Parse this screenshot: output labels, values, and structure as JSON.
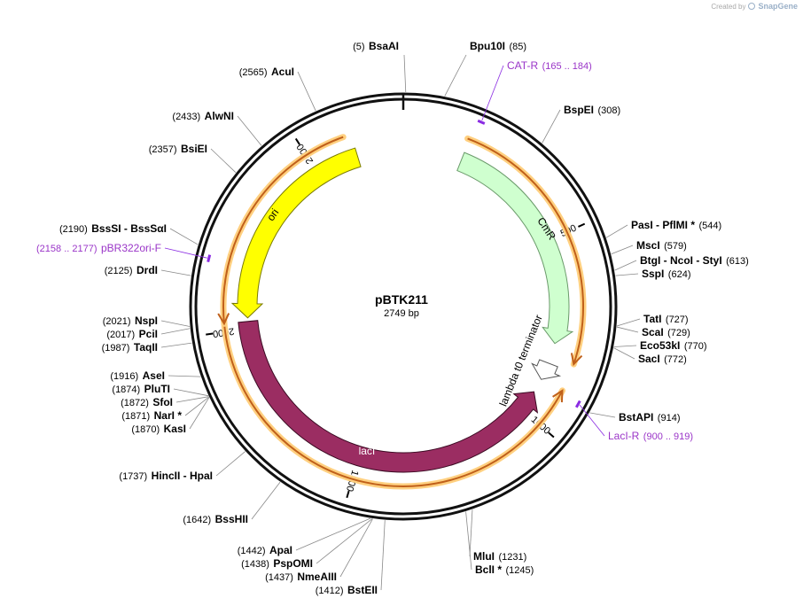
{
  "credit": {
    "prefix": "Created by",
    "brand": "SnapGene"
  },
  "plasmid": {
    "name": "pBTK211",
    "length_label": "2749 bp",
    "total_bp": 2749
  },
  "colors": {
    "cmr": "#cfffcf",
    "ori": "#ffff00",
    "laci": "#9b2d62",
    "terminator": "#ffffff",
    "primer": "#8a2be2",
    "orf": "#c0601a",
    "orf_glow": "#ffd080"
  },
  "ticks": [
    "500",
    "1000",
    "1500",
    "2000",
    "2500"
  ],
  "features": [
    {
      "name": "CmR",
      "start": 165,
      "end": 792,
      "direction": "forward"
    },
    {
      "name": "lambda t0 terminator",
      "start": 850,
      "end": 900,
      "direction": "forward"
    },
    {
      "name": "lacI",
      "start": 940,
      "end": 2020,
      "direction": "reverse"
    },
    {
      "name": "ori",
      "start": 2030,
      "end": 2620,
      "direction": "reverse"
    }
  ],
  "primers": [
    {
      "name": "CAT-R",
      "range": "(165 .. 184)",
      "position": 175
    },
    {
      "name": "LacI-R",
      "range": "(900 .. 919)",
      "position": 910
    },
    {
      "name": "pBR322ori-F",
      "range": "(2158 .. 2177)",
      "position": 2168
    }
  ],
  "enzyme_labels": [
    {
      "parts": [
        "Bpu10I"
      ],
      "position": "(85)",
      "bp": 85
    },
    {
      "parts": [
        "BspEI"
      ],
      "position": "(308)",
      "bp": 308
    },
    {
      "parts": [
        "PasI",
        "PflMI *"
      ],
      "position": "(544)",
      "bp": 544
    },
    {
      "parts": [
        "MscI"
      ],
      "position": "(579)",
      "bp": 579
    },
    {
      "parts": [
        "BtgI",
        "NcoI",
        "StyI"
      ],
      "position": "(613)",
      "bp": 613
    },
    {
      "parts": [
        "SspI"
      ],
      "position": "(624)",
      "bp": 624
    },
    {
      "parts": [
        "TatI"
      ],
      "position": "(727)",
      "bp": 727
    },
    {
      "parts": [
        "ScaI"
      ],
      "position": "(729)",
      "bp": 729
    },
    {
      "parts": [
        "Eco53kI"
      ],
      "position": "(770)",
      "bp": 770
    },
    {
      "parts": [
        "SacI"
      ],
      "position": "(772)",
      "bp": 772
    },
    {
      "parts": [
        "BstAPI"
      ],
      "position": "(914)",
      "bp": 914
    },
    {
      "parts": [
        "MluI"
      ],
      "position": "(1231)",
      "bp": 1231
    },
    {
      "parts": [
        "BclI *"
      ],
      "position": "(1245)",
      "bp": 1245
    },
    {
      "parts": [
        "BstEII"
      ],
      "position": "(1412)",
      "bp": 1412
    },
    {
      "parts": [
        "NmeAIII"
      ],
      "position": "(1437)",
      "bp": 1437
    },
    {
      "parts": [
        "PspOMI"
      ],
      "position": "(1438)",
      "bp": 1438
    },
    {
      "parts": [
        "ApaI"
      ],
      "position": "(1442)",
      "bp": 1442
    },
    {
      "parts": [
        "BssHII"
      ],
      "position": "(1642)",
      "bp": 1642
    },
    {
      "parts": [
        "HincII",
        "HpaI"
      ],
      "position": "(1737)",
      "bp": 1737
    },
    {
      "parts": [
        "KasI"
      ],
      "position": "(1870)",
      "bp": 1870
    },
    {
      "parts": [
        "NarI *"
      ],
      "position": "(1871)",
      "bp": 1871
    },
    {
      "parts": [
        "SfoI"
      ],
      "position": "(1872)",
      "bp": 1872
    },
    {
      "parts": [
        "PluTI"
      ],
      "position": "(1874)",
      "bp": 1874
    },
    {
      "parts": [
        "AseI"
      ],
      "position": "(1916)",
      "bp": 1916
    },
    {
      "parts": [
        "TaqII"
      ],
      "position": "(1987)",
      "bp": 1987
    },
    {
      "parts": [
        "PciI"
      ],
      "position": "(2017)",
      "bp": 2017
    },
    {
      "parts": [
        "NspI"
      ],
      "position": "(2021)",
      "bp": 2021
    },
    {
      "parts": [
        "DrdI"
      ],
      "position": "(2125)",
      "bp": 2125
    },
    {
      "parts": [
        "BssSI",
        "BssSαI"
      ],
      "position": "(2190)",
      "bp": 2190
    },
    {
      "parts": [
        "BsiEI"
      ],
      "position": "(2357)",
      "bp": 2357
    },
    {
      "parts": [
        "AlwNI"
      ],
      "position": "(2433)",
      "bp": 2433
    },
    {
      "parts": [
        "AcuI"
      ],
      "position": "(2565)",
      "bp": 2565
    },
    {
      "parts": [
        "BsaAI"
      ],
      "position": "(5)",
      "bp": 5
    }
  ]
}
